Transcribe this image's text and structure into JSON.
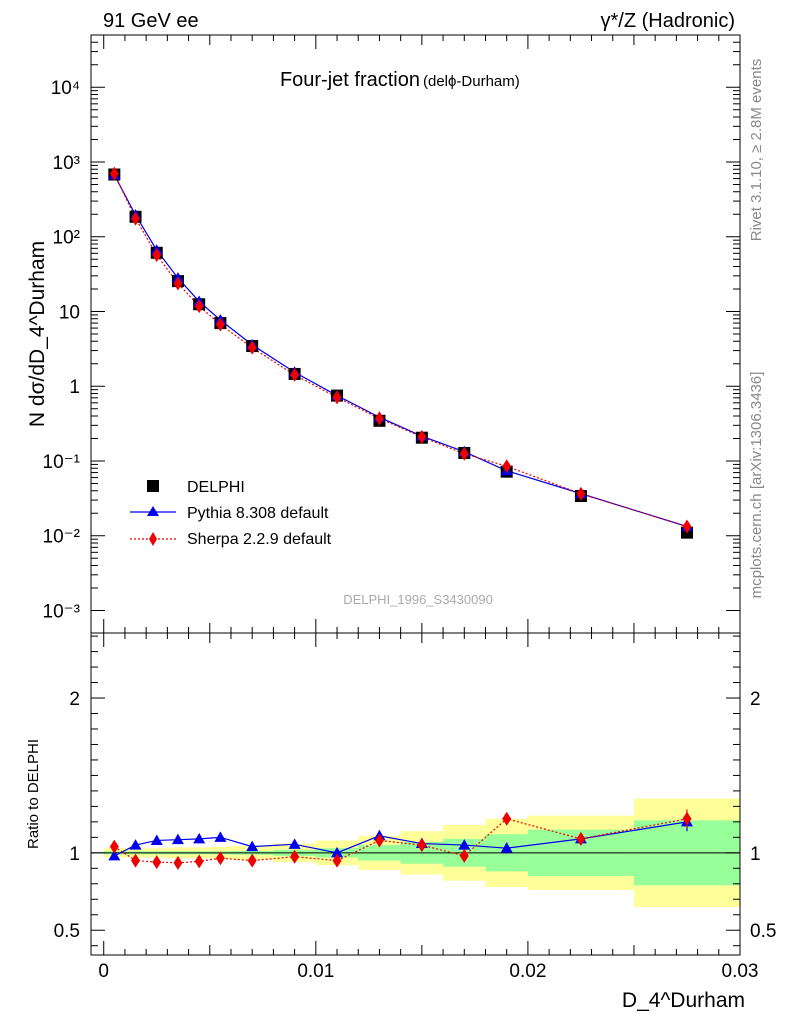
{
  "header": {
    "left": "91 GeV ee",
    "right": "γ*/Z (Hadronic)"
  },
  "side": {
    "rivet": "Rivet 3.1.10, ≥ 2.8M events",
    "mcplots": "mcplots.cern.ch [arXiv:1306.3436]"
  },
  "chart_data": [
    {
      "type": "scatter",
      "panel": "main",
      "title": "Four-jet fraction",
      "title_suffix": "(delϕ-Durham)",
      "ylabel": "N dσ/dD_4^Durham",
      "yscale": "log",
      "ylim": [
        0.0005,
        50000
      ],
      "xlim": [
        -0.0006,
        0.03
      ],
      "ytick_labels": [
        "10⁴",
        "10³",
        "10²",
        "10",
        "1",
        "10⁻¹",
        "10⁻²",
        "10⁻³"
      ],
      "analysis_label": "DELPHI_1996_S3430090",
      "legend_position": "bottom-left",
      "series": [
        {
          "name": "DELPHI",
          "marker": "square",
          "color": "#000000",
          "x": [
            0.0005,
            0.0015,
            0.0025,
            0.0035,
            0.0045,
            0.0055,
            0.007,
            0.009,
            0.011,
            0.013,
            0.015,
            0.017,
            0.019,
            0.0225,
            0.0275
          ],
          "y": [
            680,
            185,
            61,
            25.5,
            12.5,
            7.0,
            3.45,
            1.46,
            0.75,
            0.345,
            0.205,
            0.128,
            0.072,
            0.034,
            0.011
          ]
        },
        {
          "name": "Pythia 8.308 default",
          "marker": "triangle",
          "line": "solid",
          "color": "#0000ee",
          "x": [
            0.0005,
            0.0015,
            0.0025,
            0.0035,
            0.0045,
            0.0055,
            0.007,
            0.009,
            0.011,
            0.013,
            0.015,
            0.017,
            0.019,
            0.0225,
            0.0275
          ],
          "y": [
            672,
            195,
            66,
            28,
            13.6,
            7.7,
            3.58,
            1.54,
            0.75,
            0.385,
            0.215,
            0.133,
            0.074,
            0.0366,
            0.0133
          ]
        },
        {
          "name": "Sherpa 2.2.9 default",
          "marker": "diamond",
          "line": "dotted",
          "color": "#ee0000",
          "x": [
            0.0005,
            0.0015,
            0.0025,
            0.0035,
            0.0045,
            0.0055,
            0.007,
            0.009,
            0.011,
            0.013,
            0.015,
            0.017,
            0.019,
            0.0225,
            0.0275
          ],
          "y": [
            700,
            175,
            57,
            23.7,
            11.8,
            6.7,
            3.28,
            1.42,
            0.71,
            0.37,
            0.21,
            0.125,
            0.085,
            0.0365,
            0.0133
          ]
        }
      ]
    },
    {
      "type": "scatter",
      "panel": "ratio",
      "ylabel": "Ratio to DELPHI",
      "xlabel": "D_4^Durham",
      "ylim": [
        0.34,
        2.42
      ],
      "xlim": [
        -0.0006,
        0.03
      ],
      "xtick_labels": [
        "0",
        "0.01",
        "0.02",
        "0.03"
      ],
      "ytick_labels": [
        "2",
        "1",
        "0.5"
      ],
      "bands": {
        "bin_edges": [
          0.0,
          0.001,
          0.002,
          0.003,
          0.004,
          0.005,
          0.006,
          0.008,
          0.01,
          0.012,
          0.014,
          0.016,
          0.018,
          0.02,
          0.025,
          0.03
        ],
        "stat_half_width": [
          0.01,
          0.01,
          0.01,
          0.01,
          0.01,
          0.01,
          0.012,
          0.02,
          0.03,
          0.05,
          0.07,
          0.09,
          0.12,
          0.15,
          0.21
        ],
        "total_half_width": [
          0.03,
          0.03,
          0.03,
          0.035,
          0.035,
          0.04,
          0.045,
          0.06,
          0.08,
          0.11,
          0.14,
          0.18,
          0.22,
          0.24,
          0.35
        ],
        "stat_color": "#99ff99",
        "total_color": "#ffff99"
      },
      "series": [
        {
          "name": "Pythia 8.308 default",
          "color": "#0000ee",
          "marker": "triangle",
          "x": [
            0.0005,
            0.0015,
            0.0025,
            0.0035,
            0.0045,
            0.0055,
            0.007,
            0.009,
            0.011,
            0.013,
            0.015,
            0.017,
            0.019,
            0.0225,
            0.0275
          ],
          "y": [
            0.98,
            1.05,
            1.08,
            1.085,
            1.09,
            1.1,
            1.04,
            1.055,
            1.0,
            1.11,
            1.06,
            1.05,
            1.03,
            1.09,
            1.2
          ],
          "err": [
            0.01,
            0.01,
            0.01,
            0.01,
            0.01,
            0.01,
            0.01,
            0.01,
            0.01,
            0.015,
            0.02,
            0.03,
            0.035,
            0.04,
            0.06
          ]
        },
        {
          "name": "Sherpa 2.2.9 default",
          "color": "#ee0000",
          "marker": "diamond",
          "x": [
            0.0005,
            0.0015,
            0.0025,
            0.0035,
            0.0045,
            0.0055,
            0.007,
            0.009,
            0.011,
            0.013,
            0.015,
            0.017,
            0.019,
            0.0225,
            0.0275
          ],
          "y": [
            1.04,
            0.95,
            0.94,
            0.935,
            0.945,
            0.965,
            0.95,
            0.975,
            0.95,
            1.08,
            1.05,
            0.98,
            1.22,
            1.09,
            1.22
          ],
          "err": [
            0.01,
            0.01,
            0.01,
            0.01,
            0.01,
            0.01,
            0.01,
            0.01,
            0.01,
            0.015,
            0.02,
            0.03,
            0.035,
            0.04,
            0.06
          ]
        }
      ]
    }
  ]
}
